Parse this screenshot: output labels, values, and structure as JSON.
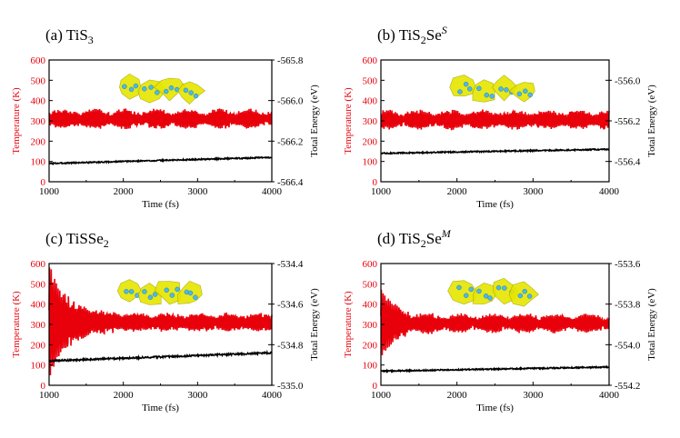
{
  "colors": {
    "temperature": "#e8000b",
    "energy": "#000000",
    "axis": "#000000",
    "si_yellow": "#e6e600",
    "ti_blue": "#4fb8e6"
  },
  "chart_data": [
    {
      "type": "line",
      "label": "(a) TiS",
      "label_sub": "3",
      "label_suffix": "",
      "label_sup": "",
      "xlabel": "Time (fs)",
      "ylabel": "Temperature (K)",
      "y2label": "Total Energy (eV)",
      "xlim": [
        1000,
        4000
      ],
      "xticks": [
        "1000",
        "2000",
        "3000",
        "4000"
      ],
      "ylim": [
        0,
        600
      ],
      "yticks": [
        "0",
        "100",
        "200",
        "300",
        "400",
        "500",
        "600"
      ],
      "y2lim": [
        -566.4,
        -565.8
      ],
      "y2ticks": [
        "-566.4",
        "-566.2",
        "-566.0",
        "-565.8"
      ],
      "series": [
        {
          "name": "Temperature",
          "axis": "left",
          "mean": 310,
          "amp": 45,
          "spike_start": 60,
          "spike_decay": 1
        },
        {
          "name": "Total Energy",
          "axis": "right",
          "start": -566.31,
          "end": -566.28,
          "noise": 0.003
        }
      ]
    },
    {
      "type": "line",
      "label": "(b) TiS",
      "label_sub": "2",
      "label_suffix": "Se",
      "label_sup": "S",
      "xlabel": "Time (fs)",
      "ylabel": "Temperature (K)",
      "y2label": "Total Energy (eV)",
      "xlim": [
        1000,
        4000
      ],
      "xticks": [
        "1000",
        "2000",
        "3000",
        "4000"
      ],
      "ylim": [
        0,
        600
      ],
      "yticks": [
        "0",
        "100",
        "200",
        "300",
        "400",
        "500",
        "600"
      ],
      "y2lim": [
        -556.5,
        -555.9
      ],
      "y2ticks": [
        "-556.4",
        "-556.2",
        "-556.0"
      ],
      "series": [
        {
          "name": "Temperature",
          "axis": "left",
          "mean": 305,
          "amp": 45,
          "spike_start": 60,
          "spike_decay": 1
        },
        {
          "name": "Total Energy",
          "axis": "right",
          "start": -556.36,
          "end": -556.34,
          "noise": 0.003
        }
      ]
    },
    {
      "type": "line",
      "label": "(c)  TiSSe",
      "label_sub": "2",
      "label_suffix": "",
      "label_sup": "",
      "xlabel": "Time (fs)",
      "ylabel": "Temperature (K)",
      "y2label": "Total Energy (eV)",
      "xlim": [
        1000,
        4000
      ],
      "xticks": [
        "1000",
        "2000",
        "3000",
        "4000"
      ],
      "ylim": [
        0,
        600
      ],
      "yticks": [
        "0",
        "100",
        "200",
        "300",
        "400",
        "500",
        "600"
      ],
      "y2lim": [
        -535.0,
        -534.4
      ],
      "y2ticks": [
        "-535.0",
        "-534.8",
        "-534.6",
        "-534.4"
      ],
      "series": [
        {
          "name": "Temperature",
          "axis": "left",
          "mean": 310,
          "amp": 45,
          "spike_start": 240,
          "spike_decay": 0.004
        },
        {
          "name": "Total Energy",
          "axis": "right",
          "start": -534.88,
          "end": -534.84,
          "noise": 0.004
        }
      ]
    },
    {
      "type": "line",
      "label": "(d)  TiS",
      "label_sub": "2",
      "label_suffix": "Se",
      "label_sup": "M",
      "xlabel": "Time (fs)",
      "ylabel": "Temperature (K)",
      "y2label": "Total Energy (eV)",
      "xlim": [
        1000,
        4000
      ],
      "xticks": [
        "1000",
        "2000",
        "3000",
        "4000"
      ],
      "ylim": [
        0,
        600
      ],
      "yticks": [
        "0",
        "100",
        "200",
        "300",
        "400",
        "500",
        "600"
      ],
      "y2lim": [
        -554.2,
        -553.6
      ],
      "y2ticks": [
        "-554.2",
        "-554.0",
        "-553.8",
        "-553.6"
      ],
      "series": [
        {
          "name": "Temperature",
          "axis": "left",
          "mean": 305,
          "amp": 45,
          "spike_start": 150,
          "spike_decay": 0.006
        },
        {
          "name": "Total Energy",
          "axis": "right",
          "start": -554.13,
          "end": -554.11,
          "noise": 0.003
        }
      ]
    }
  ]
}
